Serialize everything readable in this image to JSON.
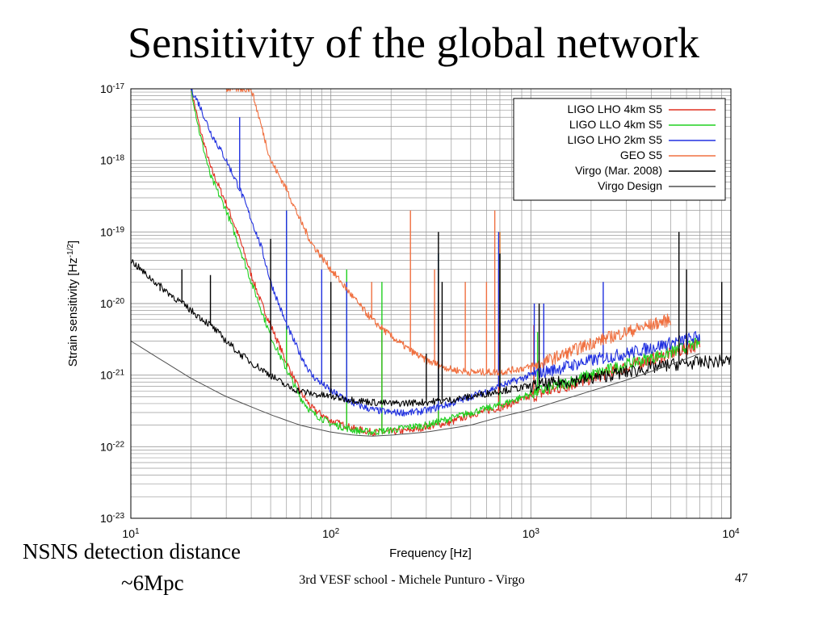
{
  "slide": {
    "title": "Sensitivity of the global network",
    "note_line1": "NSNS detection distance",
    "note_line2": "~6Mpc",
    "footer": "3rd VESF school - Michele Punturo - Virgo",
    "page_number": "47"
  },
  "chart_data": {
    "type": "line",
    "xlabel": "Frequency [Hz]",
    "ylabel": "Strain sensitivity [Hz^-1/2]",
    "xscale": "log",
    "yscale": "log",
    "xlim": [
      10,
      10000
    ],
    "ylim": [
      1e-23,
      1e-17
    ],
    "grid": true,
    "legend_position": "top-right",
    "x_tick_labels": [
      {
        "base": "10",
        "exp": "1"
      },
      {
        "base": "10",
        "exp": "2"
      },
      {
        "base": "10",
        "exp": "3"
      },
      {
        "base": "10",
        "exp": "4"
      }
    ],
    "y_tick_labels": [
      {
        "base": "10",
        "exp": "-17"
      },
      {
        "base": "10",
        "exp": "-18"
      },
      {
        "base": "10",
        "exp": "-19"
      },
      {
        "base": "10",
        "exp": "-20"
      },
      {
        "base": "10",
        "exp": "-21"
      },
      {
        "base": "10",
        "exp": "-22"
      },
      {
        "base": "10",
        "exp": "-23"
      }
    ],
    "series": [
      {
        "name": "LIGO LHO 4km S5",
        "color": "#e03020",
        "points": [
          [
            20,
            1e-17
          ],
          [
            22,
            3e-18
          ],
          [
            25,
            8e-19
          ],
          [
            30,
            2.5e-19
          ],
          [
            35,
            8e-20
          ],
          [
            40,
            2.5e-20
          ],
          [
            45,
            1e-20
          ],
          [
            50,
            5e-21
          ],
          [
            60,
            1.5e-21
          ],
          [
            70,
            6e-22
          ],
          [
            80,
            3.5e-22
          ],
          [
            100,
            2.3e-22
          ],
          [
            130,
            1.8e-22
          ],
          [
            160,
            1.6e-22
          ],
          [
            200,
            1.6e-22
          ],
          [
            250,
            1.7e-22
          ],
          [
            300,
            1.9e-22
          ],
          [
            400,
            2.2e-22
          ],
          [
            500,
            2.8e-22
          ],
          [
            700,
            3.5e-22
          ],
          [
            1000,
            5e-22
          ],
          [
            2000,
            9e-22
          ],
          [
            3000,
            1.3e-21
          ],
          [
            5000,
            2e-21
          ],
          [
            7000,
            2.7e-21
          ]
        ],
        "spikes": [
          [
            60,
            1e-20
          ],
          [
            120,
            3e-21
          ],
          [
            180,
            4e-21
          ],
          [
            345,
            1.5e-20
          ],
          [
            690,
            3e-20
          ],
          [
            1035,
            5e-21
          ]
        ]
      },
      {
        "name": "LIGO LLO 4km S5",
        "color": "#20d020",
        "points": [
          [
            20,
            1e-17
          ],
          [
            22,
            2.5e-18
          ],
          [
            25,
            6e-19
          ],
          [
            30,
            2e-19
          ],
          [
            35,
            6e-20
          ],
          [
            40,
            2e-20
          ],
          [
            45,
            8e-21
          ],
          [
            50,
            3.5e-21
          ],
          [
            60,
            1.2e-21
          ],
          [
            70,
            5e-22
          ],
          [
            80,
            3e-22
          ],
          [
            100,
            2.1e-22
          ],
          [
            130,
            1.7e-22
          ],
          [
            160,
            1.6e-22
          ],
          [
            200,
            1.7e-22
          ],
          [
            250,
            1.9e-22
          ],
          [
            300,
            2e-22
          ],
          [
            400,
            2.5e-22
          ],
          [
            500,
            3e-22
          ],
          [
            700,
            3.8e-22
          ],
          [
            1000,
            5.5e-22
          ],
          [
            2000,
            1e-21
          ],
          [
            3000,
            1.4e-21
          ],
          [
            5000,
            2.1e-21
          ],
          [
            7000,
            2.8e-21
          ]
        ],
        "spikes": [
          [
            60,
            2e-19
          ],
          [
            120,
            3e-20
          ],
          [
            180,
            2e-20
          ],
          [
            345,
            5e-20
          ],
          [
            700,
            1e-19
          ],
          [
            1080,
            4e-21
          ]
        ]
      },
      {
        "name": "LIGO LHO 2km S5",
        "color": "#2030e0",
        "points": [
          [
            20,
            1e-17
          ],
          [
            22,
            6e-18
          ],
          [
            25,
            2.5e-18
          ],
          [
            30,
            1e-18
          ],
          [
            35,
            4e-19
          ],
          [
            40,
            1.5e-19
          ],
          [
            45,
            6e-20
          ],
          [
            50,
            2e-20
          ],
          [
            60,
            5e-21
          ],
          [
            70,
            2e-21
          ],
          [
            80,
            1e-21
          ],
          [
            100,
            6e-22
          ],
          [
            130,
            4e-22
          ],
          [
            160,
            3.3e-22
          ],
          [
            200,
            3e-22
          ],
          [
            250,
            3e-22
          ],
          [
            300,
            3.2e-22
          ],
          [
            400,
            4e-22
          ],
          [
            500,
            5e-22
          ],
          [
            700,
            7e-22
          ],
          [
            1000,
            1e-21
          ],
          [
            2000,
            1.6e-21
          ],
          [
            3000,
            2e-21
          ],
          [
            5000,
            2.8e-21
          ],
          [
            7000,
            3.5e-21
          ]
        ],
        "spikes": [
          [
            35,
            4e-18
          ],
          [
            60,
            2e-19
          ],
          [
            90,
            3e-20
          ],
          [
            120,
            2e-20
          ],
          [
            345,
            5e-20
          ],
          [
            690,
            1e-19
          ],
          [
            1040,
            1e-20
          ],
          [
            1160,
            1e-20
          ],
          [
            2300,
            2e-20
          ]
        ]
      },
      {
        "name": "GEO S5",
        "color": "#f07040",
        "points": [
          [
            30,
            1e-17
          ],
          [
            40,
            1e-17
          ],
          [
            50,
            1e-18
          ],
          [
            60,
            4e-19
          ],
          [
            70,
            1.5e-19
          ],
          [
            80,
            7e-20
          ],
          [
            100,
            3e-20
          ],
          [
            130,
            1.2e-20
          ],
          [
            160,
            6e-21
          ],
          [
            200,
            3.5e-21
          ],
          [
            250,
            2.2e-21
          ],
          [
            300,
            1.6e-21
          ],
          [
            400,
            1.2e-21
          ],
          [
            500,
            1.1e-21
          ],
          [
            700,
            1.1e-21
          ],
          [
            1000,
            1.3e-21
          ],
          [
            1500,
            2e-21
          ],
          [
            2000,
            2.8e-21
          ],
          [
            3000,
            4e-21
          ],
          [
            5000,
            6e-21
          ]
        ],
        "spikes": [
          [
            160,
            2e-20
          ],
          [
            250,
            2e-19
          ],
          [
            330,
            3e-20
          ],
          [
            470,
            2e-20
          ],
          [
            600,
            2e-20
          ],
          [
            660,
            2e-19
          ],
          [
            700,
            1e-19
          ]
        ]
      },
      {
        "name": "Virgo (Mar. 2008)",
        "color": "#000000",
        "points": [
          [
            10,
            4e-20
          ],
          [
            12,
            2.5e-20
          ],
          [
            15,
            1.5e-20
          ],
          [
            20,
            8e-21
          ],
          [
            25,
            5e-21
          ],
          [
            30,
            3e-21
          ],
          [
            35,
            2e-21
          ],
          [
            40,
            1.5e-21
          ],
          [
            50,
            1e-21
          ],
          [
            60,
            7e-22
          ],
          [
            70,
            6e-22
          ],
          [
            80,
            5.5e-22
          ],
          [
            100,
            5e-22
          ],
          [
            130,
            4.5e-22
          ],
          [
            160,
            4.2e-22
          ],
          [
            200,
            4e-22
          ],
          [
            300,
            4.2e-22
          ],
          [
            400,
            4.5e-22
          ],
          [
            500,
            5e-22
          ],
          [
            700,
            6e-22
          ],
          [
            1000,
            7e-22
          ],
          [
            2000,
            9e-22
          ],
          [
            3000,
            1.1e-21
          ],
          [
            5000,
            1.4e-21
          ],
          [
            7000,
            1.5e-21
          ],
          [
            10000,
            1.6e-21
          ]
        ],
        "spikes": [
          [
            14,
            1.5e-20
          ],
          [
            18,
            3e-20
          ],
          [
            25,
            2.5e-20
          ],
          [
            50,
            8e-20
          ],
          [
            100,
            2e-20
          ],
          [
            300,
            2e-21
          ],
          [
            345,
            1e-19
          ],
          [
            360,
            2e-20
          ],
          [
            700,
            5e-20
          ],
          [
            1100,
            1e-20
          ],
          [
            5500,
            1e-19
          ],
          [
            6000,
            3e-20
          ],
          [
            9000,
            2e-20
          ]
        ]
      },
      {
        "name": "Virgo Design",
        "color": "#505050",
        "points": [
          [
            10,
            3e-21
          ],
          [
            20,
            9e-22
          ],
          [
            30,
            5e-22
          ],
          [
            50,
            2.8e-22
          ],
          [
            70,
            2e-22
          ],
          [
            100,
            1.6e-22
          ],
          [
            130,
            1.45e-22
          ],
          [
            160,
            1.4e-22
          ],
          [
            200,
            1.45e-22
          ],
          [
            300,
            1.6e-22
          ],
          [
            500,
            2e-22
          ],
          [
            700,
            2.6e-22
          ],
          [
            1000,
            3.3e-22
          ],
          [
            2000,
            6e-22
          ],
          [
            3000,
            8.5e-22
          ],
          [
            5000,
            1.4e-21
          ],
          [
            7000,
            2e-21
          ]
        ],
        "spikes": []
      }
    ]
  }
}
